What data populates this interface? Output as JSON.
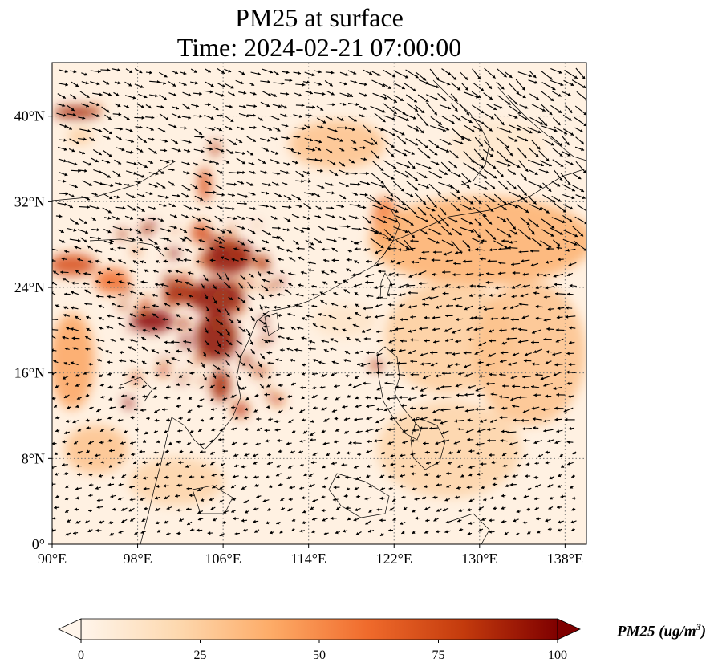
{
  "figure": {
    "title_line1": "PM25 at surface",
    "title_line2": "Time: 2024-02-21 07:00:00"
  },
  "map": {
    "lon_range": [
      90,
      140
    ],
    "lat_range": [
      0,
      45
    ],
    "lon_ticks": [
      {
        "value": 90,
        "label": "90°E"
      },
      {
        "value": 98,
        "label": "98°E"
      },
      {
        "value": 106,
        "label": "106°E"
      },
      {
        "value": 114,
        "label": "114°E"
      },
      {
        "value": 122,
        "label": "122°E"
      },
      {
        "value": 130,
        "label": "130°E"
      },
      {
        "value": 138,
        "label": "138°E"
      }
    ],
    "lat_ticks": [
      {
        "value": 0,
        "label": "0°"
      },
      {
        "value": 8,
        "label": "8°N"
      },
      {
        "value": 16,
        "label": "16°N"
      },
      {
        "value": 24,
        "label": "24°N"
      },
      {
        "value": 32,
        "label": "32°N"
      },
      {
        "value": 40,
        "label": "40°N"
      }
    ],
    "gridlines": "dotted",
    "field": "PM25 concentration (filled contours)",
    "overlay": "wind vectors (arrows)",
    "colormap": [
      "#fff5eb",
      "#fdd9b0",
      "#fdab67",
      "#f06b2c",
      "#c43b0d",
      "#7f0000"
    ],
    "hotspots_note": "high PM25 over southern China / northern Indochina and Taiwan"
  },
  "colorbar": {
    "title": "PM25 (ug/m",
    "title_sup": "3",
    "title_close": ")",
    "min": 0,
    "max": 100,
    "ticks": [
      {
        "value": 0,
        "label": "0"
      },
      {
        "value": 25,
        "label": "25"
      },
      {
        "value": 50,
        "label": "50"
      },
      {
        "value": 75,
        "label": "75"
      },
      {
        "value": 100,
        "label": "100"
      }
    ],
    "extend": "both"
  }
}
